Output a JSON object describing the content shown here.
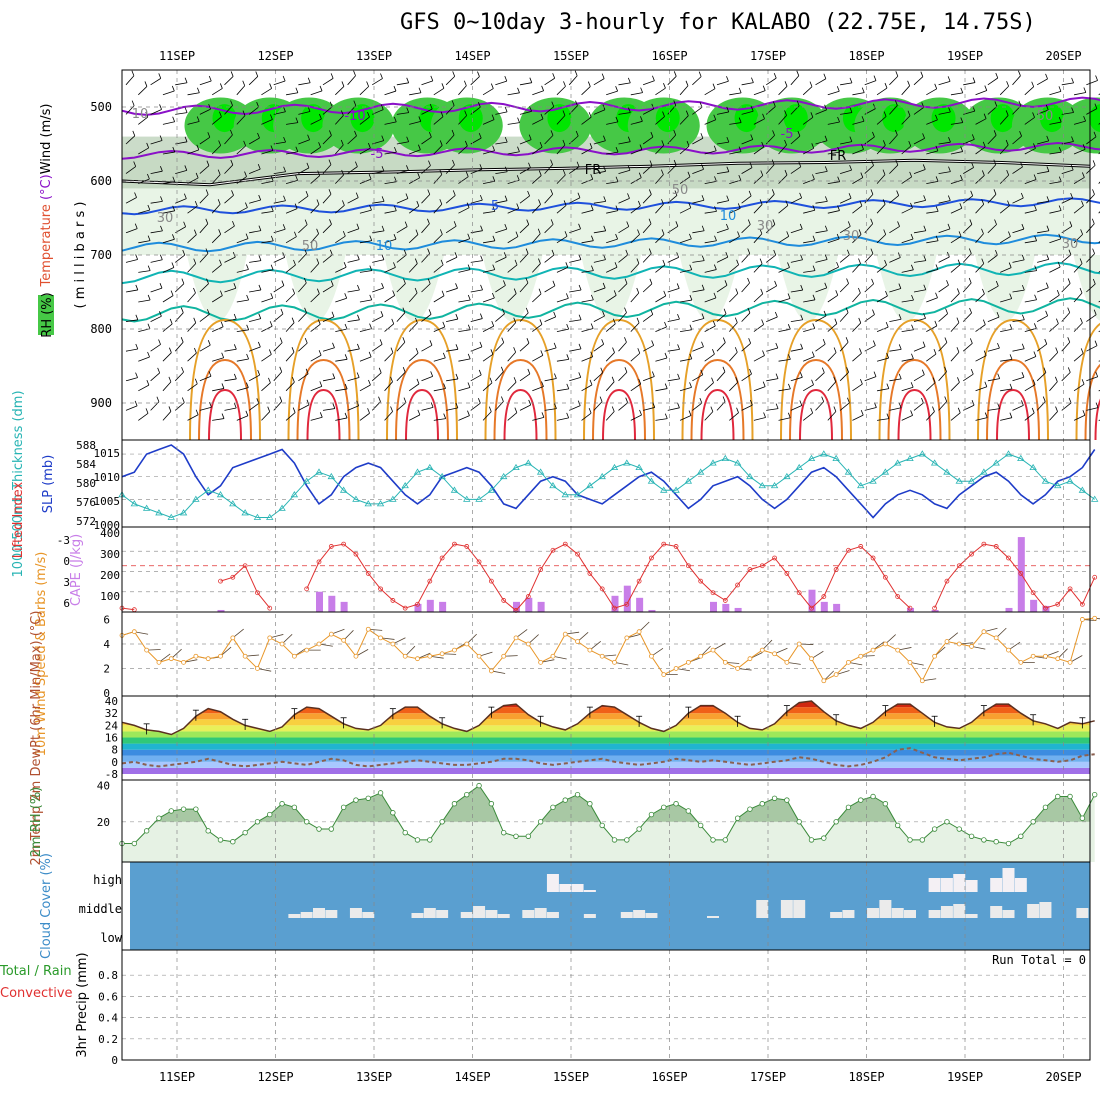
{
  "title": "GFS 0~10day 3-hourly for KALABO (22.75E, 14.75S)",
  "chart_data": [
    {
      "type": "heatmap",
      "panel": "upper-air cross section",
      "ylabel_parts": [
        "Wind (m/s)",
        "Temperature (°C)",
        "RH (%)",
        "(millibars)"
      ],
      "rh_legend": "RH (%)",
      "ylabel_mb": "( m i l l i b a r s )",
      "yticks": [
        "500",
        "600",
        "700",
        "800",
        "900"
      ],
      "ytick_values": [
        500,
        600,
        700,
        800,
        900
      ],
      "ylim": [
        450,
        950
      ],
      "dates": [
        "11SEP",
        "12SEP",
        "13SEP",
        "14SEP",
        "15SEP",
        "16SEP",
        "17SEP",
        "18SEP",
        "19SEP",
        "20SEP"
      ],
      "contour_labels": [
        "10",
        "-10",
        "-5",
        "-5",
        "FR",
        "FR",
        "5",
        "10",
        "10",
        "30",
        "50",
        "50",
        "30",
        "30",
        "30",
        "50"
      ],
      "freezing_level_mb": [
        600,
        605,
        590,
        588,
        585,
        583,
        580,
        576,
        575,
        572,
        575,
        580
      ]
    },
    {
      "type": "line",
      "panel": "thickness-slp",
      "y1label": "1000-500mb Thickness (dm)",
      "y2label": "SLP (mb)",
      "y1ticks": [
        "588",
        "584",
        "580",
        "576",
        "572"
      ],
      "y2ticks": [
        "1015",
        "1010",
        "1005",
        "1000"
      ],
      "series": [
        {
          "name": "SLP (mb)",
          "values": [
            1010,
            1011,
            1015,
            1016,
            1017,
            1015,
            1010,
            1006,
            1008,
            1012,
            1013,
            1014,
            1015,
            1016,
            1013,
            1008,
            1004,
            1006,
            1010,
            1012,
            1013,
            1012,
            1009,
            1006,
            1004,
            1006,
            1010,
            1011,
            1012,
            1011,
            1008,
            1004,
            1003,
            1006,
            1009,
            1010,
            1009,
            1006,
            1005,
            1004,
            1006,
            1008,
            1010,
            1011,
            1009,
            1006,
            1003,
            1005,
            1008,
            1009,
            1010,
            1008,
            1005,
            1003,
            1005,
            1008,
            1011,
            1012,
            1010,
            1007,
            1004,
            1001,
            1004,
            1006,
            1007,
            1006,
            1004,
            1003,
            1006,
            1008,
            1010,
            1011,
            1009,
            1006,
            1004,
            1006,
            1009,
            1010,
            1012,
            1016
          ]
        },
        {
          "name": "Thickness (dm)",
          "values": [
            577,
            575,
            574,
            573,
            572,
            573,
            576,
            578,
            577,
            575,
            573,
            572,
            572,
            574,
            577,
            580,
            582,
            581,
            578,
            576,
            575,
            575,
            576,
            579,
            582,
            583,
            581,
            578,
            576,
            576,
            578,
            581,
            583,
            584,
            582,
            579,
            577,
            577,
            579,
            581,
            583,
            584,
            583,
            580,
            578,
            578,
            580,
            582,
            584,
            585,
            584,
            581,
            579,
            579,
            581,
            583,
            585,
            586,
            585,
            582,
            579,
            580,
            582,
            584,
            585,
            586,
            584,
            582,
            580,
            580,
            582,
            584,
            586,
            585,
            583,
            580,
            579,
            580,
            578,
            576
          ]
        }
      ]
    },
    {
      "type": "bar",
      "panel": "cape-li",
      "y1label": "Lifted Index",
      "y2label": "CAPE (J/kg)",
      "y1ticks": [
        "-3",
        "0",
        "3",
        "6"
      ],
      "y2ticks": [
        "400",
        "300",
        "200",
        "100"
      ],
      "cape_values": [
        0,
        0,
        0,
        0,
        0,
        0,
        0,
        0,
        10,
        0,
        0,
        0,
        0,
        0,
        0,
        0,
        100,
        80,
        50,
        0,
        0,
        0,
        0,
        0,
        40,
        60,
        50,
        0,
        0,
        0,
        0,
        0,
        50,
        70,
        50,
        0,
        0,
        0,
        0,
        0,
        80,
        130,
        70,
        10,
        0,
        0,
        0,
        0,
        50,
        40,
        20,
        0,
        0,
        0,
        0,
        0,
        110,
        50,
        40,
        0,
        0,
        0,
        0,
        0,
        20,
        0,
        10,
        0,
        0,
        0,
        0,
        0,
        20,
        370,
        60,
        30,
        0,
        0,
        0,
        0
      ],
      "li_values": [
        5.5,
        5.7,
        null,
        null,
        null,
        null,
        null,
        null,
        2.0,
        1.5,
        0.0,
        3.5,
        5.5,
        null,
        null,
        3.0,
        -0.5,
        -2.5,
        -2.8,
        -1.5,
        1.0,
        3.0,
        4.5,
        5.5,
        5.0,
        2.0,
        -1.0,
        -2.8,
        -2.5,
        -0.5,
        2.0,
        4.5,
        5.8,
        4.0,
        0.5,
        -2.0,
        -2.8,
        -1.5,
        1.0,
        3.0,
        5.5,
        5.0,
        2.0,
        -1.0,
        -2.8,
        -2.5,
        0.0,
        2.0,
        3.5,
        4.5,
        2.5,
        0.5,
        0.0,
        -1.0,
        1.0,
        3.5,
        5.5,
        4.0,
        0.5,
        -2.0,
        -2.5,
        -1.0,
        1.5,
        4.0,
        5.5,
        null,
        5.5,
        2.0,
        0.0,
        -1.5,
        -2.8,
        -2.5,
        -1.0,
        1.0,
        3.5,
        5.5,
        5.0,
        3.0,
        5.0,
        1.5
      ]
    },
    {
      "type": "line",
      "panel": "10m wind",
      "ylabel": "10m Wind Speed & Barbs (m/s)",
      "yticks": [
        "6",
        "4",
        "2",
        "0"
      ],
      "values": [
        4.7,
        5.0,
        3.5,
        2.5,
        2.8,
        2.5,
        3.0,
        2.8,
        3.0,
        4.5,
        3.0,
        2.0,
        4.5,
        4.0,
        3.0,
        3.5,
        4.0,
        4.8,
        4.3,
        3.0,
        5.2,
        4.5,
        4.0,
        3.0,
        2.8,
        3.0,
        3.2,
        3.5,
        4.0,
        3.0,
        1.8,
        3.0,
        4.5,
        4.0,
        2.5,
        3.0,
        4.8,
        4.2,
        3.5,
        3.0,
        2.5,
        4.5,
        5.0,
        3.0,
        1.5,
        2.0,
        2.5,
        3.0,
        3.5,
        2.5,
        2.0,
        2.8,
        3.5,
        3.2,
        2.5,
        4.0,
        2.8,
        1.0,
        1.5,
        2.5,
        3.0,
        3.5,
        4.0,
        3.5,
        2.5,
        1.0,
        3.0,
        4.2,
        4.0,
        3.8,
        5.0,
        4.5,
        3.5,
        2.5,
        3.0,
        3.0,
        2.8,
        2.5,
        6.0,
        6.1
      ]
    },
    {
      "type": "area",
      "panel": "2m temp",
      "ylabel": "2m Temp 2m DewPt (6hr Min/Max) (°C)",
      "yticks": [
        "40",
        "32",
        "24",
        "16",
        "8",
        "0",
        "-8"
      ],
      "temp": [
        26,
        24,
        21,
        20,
        18,
        22,
        30,
        35,
        33,
        28,
        24,
        22,
        20,
        23,
        31,
        36,
        35,
        30,
        25,
        22,
        21,
        24,
        31,
        36,
        36,
        30,
        25,
        22,
        20,
        24,
        32,
        37,
        38,
        31,
        26,
        23,
        21,
        25,
        32,
        37,
        36,
        31,
        26,
        22,
        20,
        24,
        32,
        37,
        37,
        32,
        26,
        22,
        21,
        25,
        33,
        39,
        40,
        33,
        27,
        24,
        22,
        26,
        33,
        38,
        38,
        32,
        26,
        23,
        22,
        26,
        33,
        38,
        38,
        32,
        27,
        25,
        22,
        26,
        25,
        27
      ],
      "dewpt": [
        -1,
        0,
        -2,
        -3,
        -2,
        -1,
        0,
        2,
        0,
        -2,
        -3,
        -2,
        -1,
        0,
        -1,
        -2,
        0,
        2,
        1,
        -2,
        -3,
        -2,
        -1,
        0,
        1,
        0,
        -1,
        -2,
        -2,
        -1,
        0,
        2,
        2,
        1,
        -1,
        -2,
        -1,
        0,
        1,
        2,
        0,
        -1,
        -2,
        -1,
        0,
        2,
        1,
        0,
        1,
        0,
        -1,
        -2,
        -1,
        0,
        1,
        3,
        2,
        0,
        -2,
        -3,
        -2,
        0,
        3,
        8,
        9,
        6,
        3,
        2,
        1,
        2,
        3,
        5,
        6,
        4,
        2,
        1,
        0,
        1,
        4,
        5
      ]
    },
    {
      "type": "area",
      "panel": "2m rh",
      "ylabel": "2m RH (%)",
      "yticks": [
        "40",
        "20"
      ],
      "values": [
        8,
        8,
        15,
        22,
        26,
        27,
        27,
        15,
        10,
        9,
        14,
        20,
        24,
        30,
        28,
        20,
        16,
        16,
        28,
        32,
        33,
        36,
        25,
        14,
        10,
        10,
        20,
        30,
        35,
        40,
        30,
        14,
        12,
        12,
        20,
        28,
        32,
        35,
        30,
        18,
        10,
        10,
        16,
        24,
        28,
        30,
        26,
        18,
        10,
        10,
        22,
        27,
        30,
        33,
        32,
        20,
        10,
        11,
        20,
        28,
        32,
        34,
        30,
        18,
        10,
        10,
        16,
        20,
        16,
        12,
        10,
        9,
        8,
        12,
        20,
        28,
        34,
        34,
        22,
        35
      ]
    },
    {
      "type": "bar",
      "panel": "cloud cover",
      "ylabel": "Cloud Cover (%)",
      "levels": [
        "high",
        "middle",
        "low"
      ]
    },
    {
      "type": "bar",
      "panel": "3hr precip",
      "ylabel": "3hr Precip (mm)",
      "legend": [
        "Total / Rain",
        "Convective"
      ],
      "yticks": [
        "0.8",
        "0.6",
        "0.4",
        "0.2",
        "0"
      ],
      "annotation": "Run Total = 0",
      "values": []
    }
  ],
  "colors": {
    "rh_light": "#e8f4e6",
    "rh_mid": "#bed3bb",
    "rh_dark": "#8fa88c",
    "rh_green": "#46c846",
    "rh_bright": "#00e600",
    "slp": "#1e3cc8",
    "thickness": "#28b4b4",
    "li": "#e03030",
    "cape": "#c87ee8",
    "wind": "#e89628",
    "cloud_bg": "#5a9fd0",
    "rh2m": "#3a8a3a"
  }
}
